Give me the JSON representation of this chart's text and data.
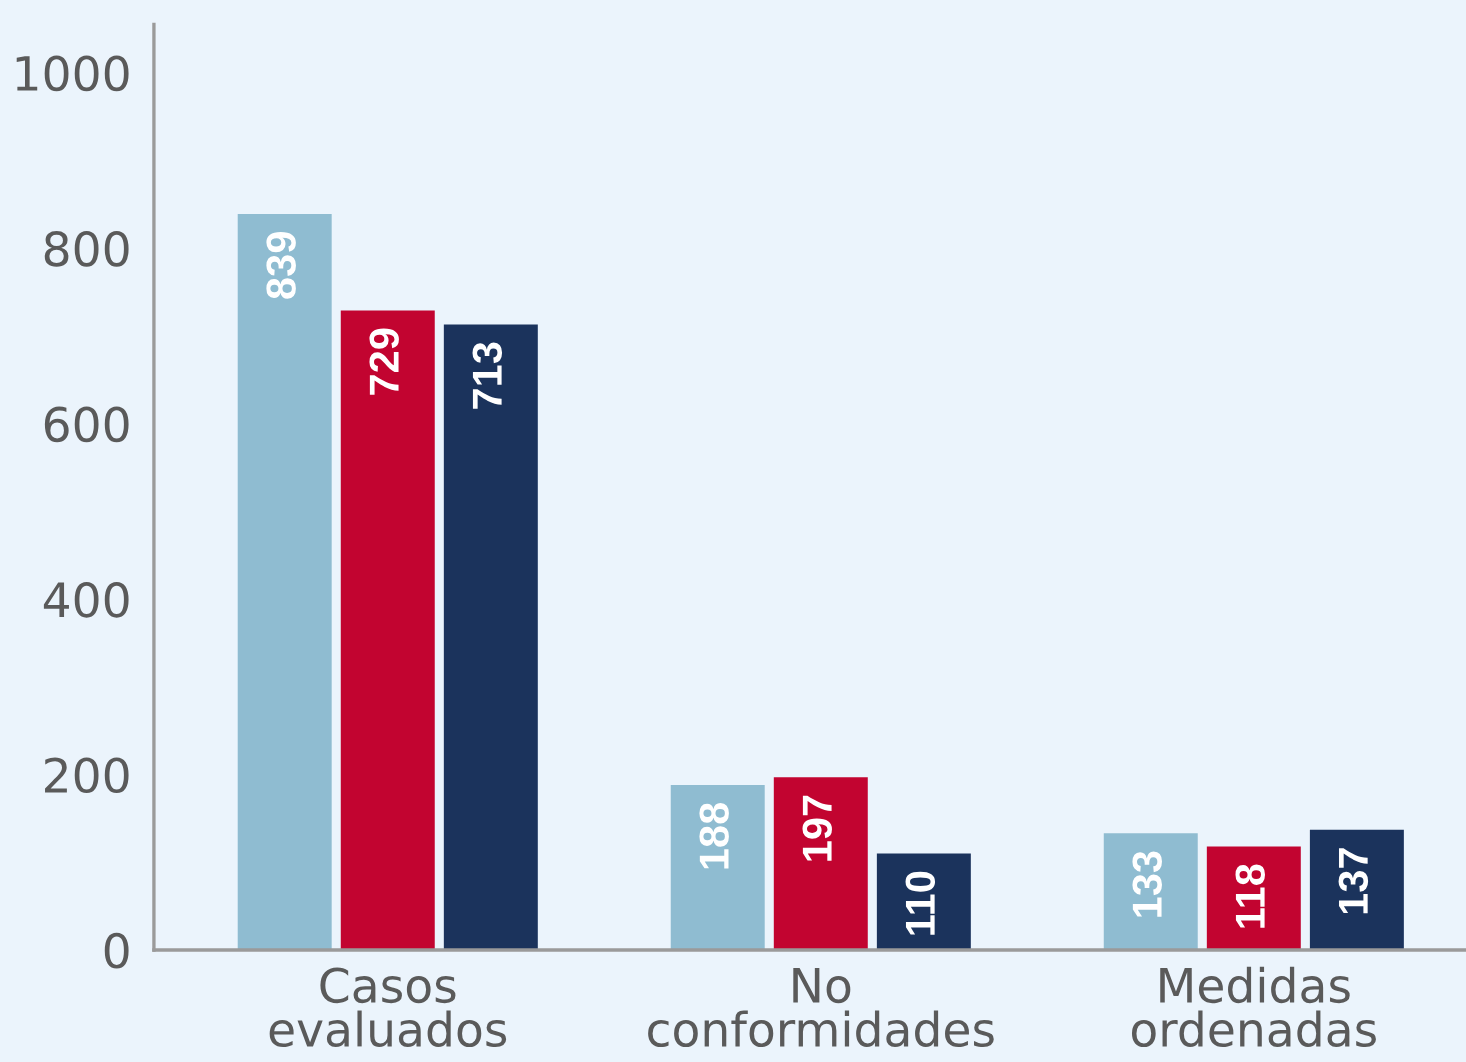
{
  "chart_data": {
    "type": "bar",
    "categories": [
      "Casos\nevaluados",
      "No\nconformidades",
      "Medidas\nordenadas"
    ],
    "series": [
      {
        "color": "#8fbcd1",
        "values": [
          839,
          188,
          133
        ]
      },
      {
        "color": "#c20430",
        "values": [
          729,
          197,
          118
        ]
      },
      {
        "color": "#1b335c",
        "values": [
          713,
          110,
          137
        ]
      }
    ],
    "ylim": [
      0,
      1055
    ],
    "yticks": [
      0,
      200,
      400,
      600,
      800,
      1000
    ],
    "data_labels": true,
    "grid": false
  }
}
